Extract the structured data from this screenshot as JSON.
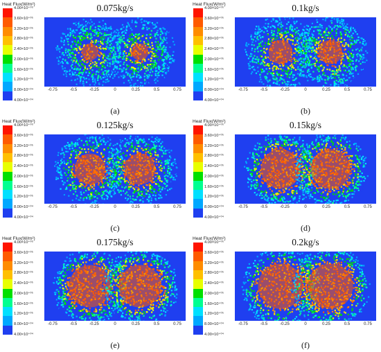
{
  "legend": {
    "title": "Heat Flux(W/m²)",
    "tick_labels": [
      "4.00×10⁺⁰⁵",
      "3.60×10⁺⁰⁵",
      "3.20×10⁺⁰⁵",
      "2.80×10⁺⁰⁵",
      "2.40×10⁺⁰⁵",
      "2.00×10⁺⁰⁵",
      "1.60×10⁺⁰⁵",
      "1.20×10⁺⁰⁵",
      "8.00×10⁺⁰⁴",
      "4.00×10⁺⁰⁴"
    ],
    "colors": [
      "#ff1400",
      "#ff5a00",
      "#ff8c00",
      "#ffc000",
      "#e8ff00",
      "#00e000",
      "#00ff90",
      "#00e0ff",
      "#00a8ff",
      "#1f3ff0"
    ]
  },
  "x_tick_labels": [
    "-0.75",
    "-0.5",
    "-0.25",
    "0",
    "0.25",
    "0.5",
    "0.75"
  ],
  "panels": [
    {
      "rate": "0.075kg/s",
      "caption": "(a)"
    },
    {
      "rate": "0.1kg/s",
      "caption": "(b)"
    },
    {
      "rate": "0.125kg/s",
      "caption": "(c)"
    },
    {
      "rate": "0.15kg/s",
      "caption": "(d)"
    },
    {
      "rate": "0.175kg/s",
      "caption": "(e)"
    },
    {
      "rate": "0.2kg/s",
      "caption": "(f)"
    }
  ],
  "chart_data": {
    "type": "heatmap",
    "xlim": [
      -0.85,
      0.85
    ],
    "x_ticks": [
      -0.75,
      -0.5,
      -0.25,
      0,
      0.25,
      0.5,
      0.75
    ],
    "colorbar_range": [
      40000,
      400000
    ],
    "spray_centers_x": [
      -0.3,
      0.3
    ],
    "series": [
      {
        "name": "0.075kg/s",
        "core_radius": 0.12,
        "outer_radius": 0.42
      },
      {
        "name": "0.1kg/s",
        "core_radius": 0.17,
        "outer_radius": 0.44
      },
      {
        "name": "0.125kg/s",
        "core_radius": 0.22,
        "outer_radius": 0.44
      },
      {
        "name": "0.15kg/s",
        "core_radius": 0.28,
        "outer_radius": 0.45
      },
      {
        "name": "0.175kg/s",
        "core_radius": 0.3,
        "outer_radius": 0.46
      },
      {
        "name": "0.2kg/s",
        "core_radius": 0.32,
        "outer_radius": 0.48
      }
    ]
  }
}
